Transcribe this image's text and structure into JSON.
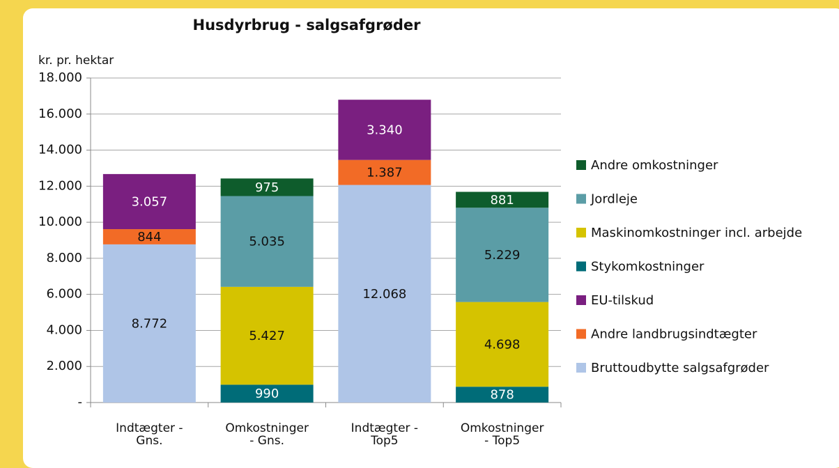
{
  "chart_data": {
    "type": "stacked_bar",
    "title": "Husdyrbrug  -  salgsafgrøder",
    "y_label": "kr. pr. hektar",
    "categories": [
      "Indtægter - Gns.",
      "Omkostninger - Gns.",
      "Indtægter - Top5",
      "Omkostninger - Top5"
    ],
    "series": [
      {
        "name": "Bruttoudbytte salgsafgrøder",
        "color": "#afc5e7",
        "values": [
          8772,
          null,
          12068,
          null
        ],
        "value_labels": [
          "8.772",
          null,
          "12.068",
          null
        ]
      },
      {
        "name": "Andre landbrugsindtægter",
        "color": "#f26b26",
        "values": [
          844,
          null,
          1387,
          null
        ],
        "value_labels": [
          "844",
          null,
          "1.387",
          null
        ]
      },
      {
        "name": "EU-tilskud",
        "color": "#7a1f80",
        "values": [
          3057,
          null,
          3340,
          null
        ],
        "value_labels": [
          "3.057",
          null,
          "3.340",
          null
        ]
      },
      {
        "name": "Stykomkostninger",
        "color": "#006c78",
        "values": [
          null,
          990,
          null,
          878
        ],
        "value_labels": [
          null,
          "990",
          null,
          "878"
        ]
      },
      {
        "name": "Maskinomkostninger incl. arbejde",
        "color": "#d5c300",
        "values": [
          null,
          5427,
          null,
          4698
        ],
        "value_labels": [
          null,
          "5.427",
          null,
          "4.698"
        ]
      },
      {
        "name": "Jordleje",
        "color": "#5b9da6",
        "values": [
          null,
          5035,
          null,
          5229
        ],
        "value_labels": [
          null,
          "5.035",
          null,
          "5.229"
        ]
      },
      {
        "name": "Andre omkostninger",
        "color": "#0e5c2c",
        "values": [
          null,
          975,
          null,
          881
        ],
        "value_labels": [
          null,
          "975",
          null,
          "881"
        ]
      }
    ],
    "ylim": [
      0,
      18000
    ],
    "yticks": [
      {
        "value": 0,
        "label": "-"
      },
      {
        "value": 2000,
        "label": "2.000"
      },
      {
        "value": 4000,
        "label": "4.000"
      },
      {
        "value": 6000,
        "label": "6.000"
      },
      {
        "value": 8000,
        "label": "8.000"
      },
      {
        "value": 10000,
        "label": "10.000"
      },
      {
        "value": 12000,
        "label": "12.000"
      },
      {
        "value": 14000,
        "label": "14.000"
      },
      {
        "value": 16000,
        "label": "16.000"
      },
      {
        "value": 18000,
        "label": "18.000"
      }
    ],
    "grid": true,
    "legend": "right"
  }
}
